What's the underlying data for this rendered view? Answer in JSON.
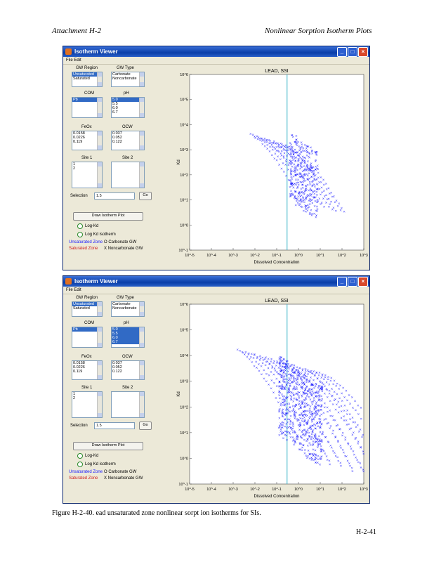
{
  "header": {
    "left": "Attachment H-2",
    "right": "Nonlinear Sorption Isotherm Plots"
  },
  "windows": [
    {
      "title": "Isotherm Viewer",
      "menu": "File Edit",
      "lists": {
        "gw_region_label": "GW Region",
        "gw_region_items": [
          "Unsaturated",
          "Saturated"
        ],
        "gw_type_label": "GW Type",
        "gw_type_items": [
          "Carbonate",
          "Noncarbonate"
        ],
        "com_label": "COM",
        "com_items": [
          "Pb"
        ],
        "ph_label": "pH",
        "ph_items": [
          "5.0",
          "5.5",
          "6.0",
          "6.7"
        ],
        "fe_label": "FeOx",
        "fe_items": [
          "0.0158",
          "0.0226",
          "0.119"
        ],
        "ocw_label": "OCW",
        "ocw_items": [
          "0.037",
          "0.052",
          "0.122"
        ],
        "site1_label": "Site 1",
        "site1_items": [
          "1",
          "2"
        ],
        "site2_label": "Site 2",
        "site2_items": []
      },
      "selection_label": "Selection",
      "selection_value": "1.5",
      "go_label": "Go",
      "draw_button": "Draw Isotherm Plot",
      "radio_1": "Log-Kd",
      "radio_2": "Log Kd isotherm",
      "legend": {
        "unsat": "Unsaturated Zone",
        "sat": "Saturated Zone",
        "carb": "O Carbonate GW",
        "noncarb": "X Noncarbonate GW"
      },
      "chart": {
        "title": "LEAD, SSI",
        "xlabel": "Dissolved Concentration",
        "ylabel": "Kd",
        "x_ticks": [
          "10^-5",
          "10^-4",
          "10^-3",
          "10^-2",
          "10^-1",
          "10^0",
          "10^1",
          "10^2",
          "10^3"
        ],
        "y_ticks": [
          "10^-1",
          "10^0",
          "10^1",
          "10^2",
          "10^3",
          "10^4",
          "10^5",
          "10^6"
        ]
      }
    },
    {
      "title": "Isotherm Viewer",
      "menu": "File Edit",
      "lists": {
        "gw_region_label": "GW Region",
        "gw_region_items": [
          "Unsaturated",
          "Saturated"
        ],
        "gw_type_label": "GW Type",
        "gw_type_items": [
          "Carbonate",
          "Noncarbonate"
        ],
        "com_label": "COM",
        "com_items": [
          "Pb"
        ],
        "ph_label": "pH",
        "ph_items": [
          "5.0",
          "5.5",
          "6.0",
          "6.7"
        ],
        "fe_label": "FeOx",
        "fe_items": [
          "0.0158",
          "0.0226",
          "0.119"
        ],
        "ocw_label": "OCW",
        "ocw_items": [
          "0.037",
          "0.052",
          "0.122"
        ],
        "site1_label": "Site 1",
        "site1_items": [
          "1",
          "2"
        ],
        "site2_label": "Site 2",
        "site2_items": []
      },
      "selection_label": "Selection",
      "selection_value": "1.5",
      "go_label": "Go",
      "draw_button": "Draw Isotherm Plot",
      "radio_1": "Log-Kd",
      "radio_2": "Log Kd isotherm",
      "legend": {
        "unsat": "Unsaturated Zone",
        "sat": "Saturated Zone",
        "carb": "O Carbonate GW",
        "noncarb": "X Noncarbonate GW"
      },
      "chart": {
        "title": "LEAD, SSI",
        "xlabel": "Dissolved Concentration",
        "ylabel": "Kd",
        "x_ticks": [
          "10^-5",
          "10^-4",
          "10^-3",
          "10^-2",
          "10^-1",
          "10^0",
          "10^1",
          "10^2",
          "10^3"
        ],
        "y_ticks": [
          "10^-1",
          "10^0",
          "10^1",
          "10^2",
          "10^3",
          "10^4",
          "10^5",
          "10^6"
        ]
      }
    }
  ],
  "caption": "Figure H-2-40.        ead unsaturated zone nonlinear sorpt                          ion isotherms for SIs.",
  "page_number": "H-2-41",
  "colors": {
    "marker": "#1a1aff",
    "vline": "#3cb4c8",
    "title_bar": "#0a3ea8"
  },
  "chart_data": [
    {
      "type": "scatter",
      "title": "LEAD, SSI",
      "xlabel": "Dissolved Concentration",
      "ylabel": "Kd",
      "x_scale": "log",
      "y_scale": "log",
      "xlim": [
        1e-05,
        1000.0
      ],
      "ylim": [
        0.1,
        1000000.0
      ],
      "marker": "x",
      "vertical_line_x": 0.3,
      "grid": false,
      "series_count": 11,
      "ph_selected": [
        "5.0"
      ]
    },
    {
      "type": "scatter",
      "title": "LEAD, SSI",
      "xlabel": "Dissolved Concentration",
      "ylabel": "Kd",
      "x_scale": "log",
      "y_scale": "log",
      "xlim": [
        1e-05,
        1000.0
      ],
      "ylim": [
        0.1,
        1000000.0
      ],
      "marker": "x",
      "vertical_line_x": 0.3,
      "grid": false,
      "series_count": 16,
      "ph_selected": [
        "5.0",
        "5.5",
        "6.0",
        "6.7"
      ]
    }
  ]
}
